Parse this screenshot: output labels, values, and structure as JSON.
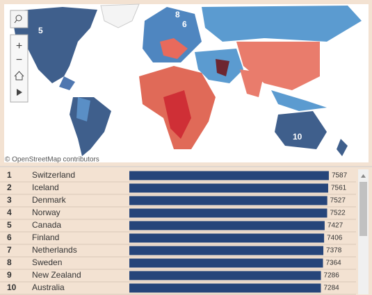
{
  "map": {
    "attribution": "© OpenStreetMap contributors",
    "labels": [
      "5",
      "8",
      "6",
      "10"
    ]
  },
  "chart_data": {
    "type": "bar",
    "orientation": "horizontal",
    "ranks": [
      1,
      2,
      3,
      4,
      5,
      6,
      7,
      8,
      9,
      10
    ],
    "categories": [
      "Switzerland",
      "Iceland",
      "Denmark",
      "Norway",
      "Canada",
      "Finland",
      "Netherlands",
      "Sweden",
      "New Zealand",
      "Australia"
    ],
    "values": [
      7587,
      7561,
      7527,
      7522,
      7427,
      7406,
      7378,
      7364,
      7286,
      7284
    ],
    "color": "#26457a",
    "xlim": [
      0,
      7800
    ]
  }
}
